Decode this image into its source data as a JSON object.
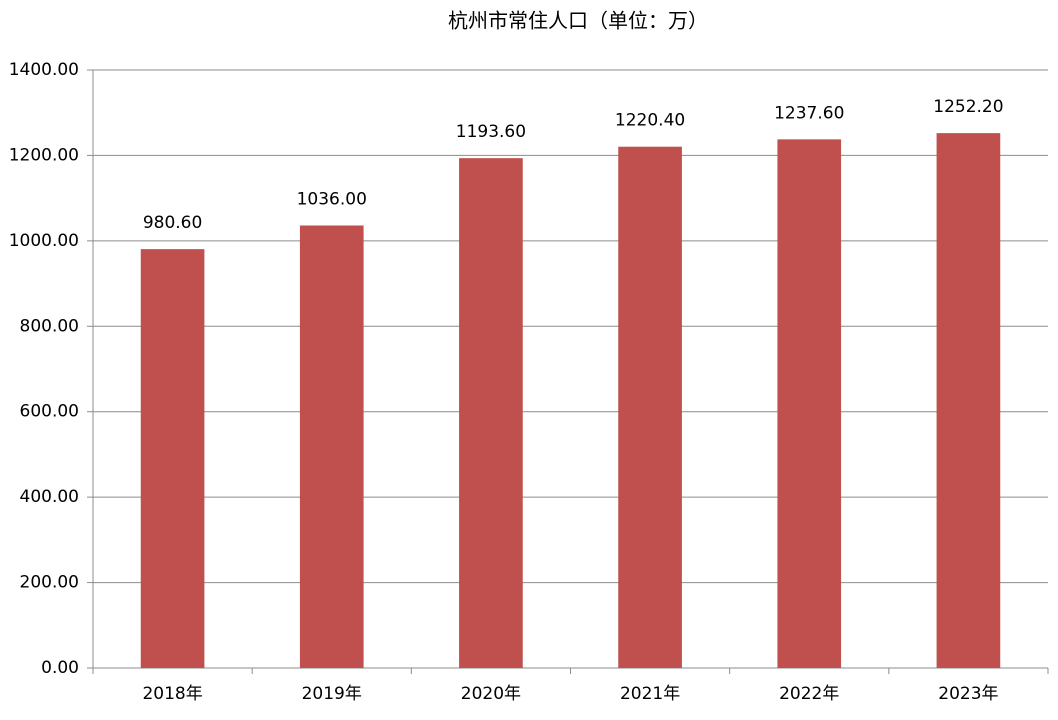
{
  "chart_data": {
    "type": "bar",
    "title": "杭州市常住人口（单位：万）",
    "categories": [
      "2018年",
      "2019年",
      "2020年",
      "2021年",
      "2022年",
      "2023年"
    ],
    "values": [
      980.6,
      1036,
      1193.6,
      1220.4,
      1237.6,
      1252.2
    ],
    "value_labels": [
      "980.60",
      "1036.00",
      "1193.60",
      "1220.40",
      "1237.60",
      "1252.20"
    ],
    "color": "#c0504d",
    "ylim": [
      0,
      1400
    ],
    "yticks": [
      {
        "value": 0,
        "label": "0.00"
      },
      {
        "value": 200,
        "label": "200.00"
      },
      {
        "value": 400,
        "label": "400.00"
      },
      {
        "value": 600,
        "label": "600.00"
      },
      {
        "value": 800,
        "label": "800.00"
      },
      {
        "value": 1000,
        "label": "1000.00"
      },
      {
        "value": 1200,
        "label": "1200.00"
      },
      {
        "value": 1400,
        "label": "1400.00"
      }
    ],
    "grid": true
  }
}
